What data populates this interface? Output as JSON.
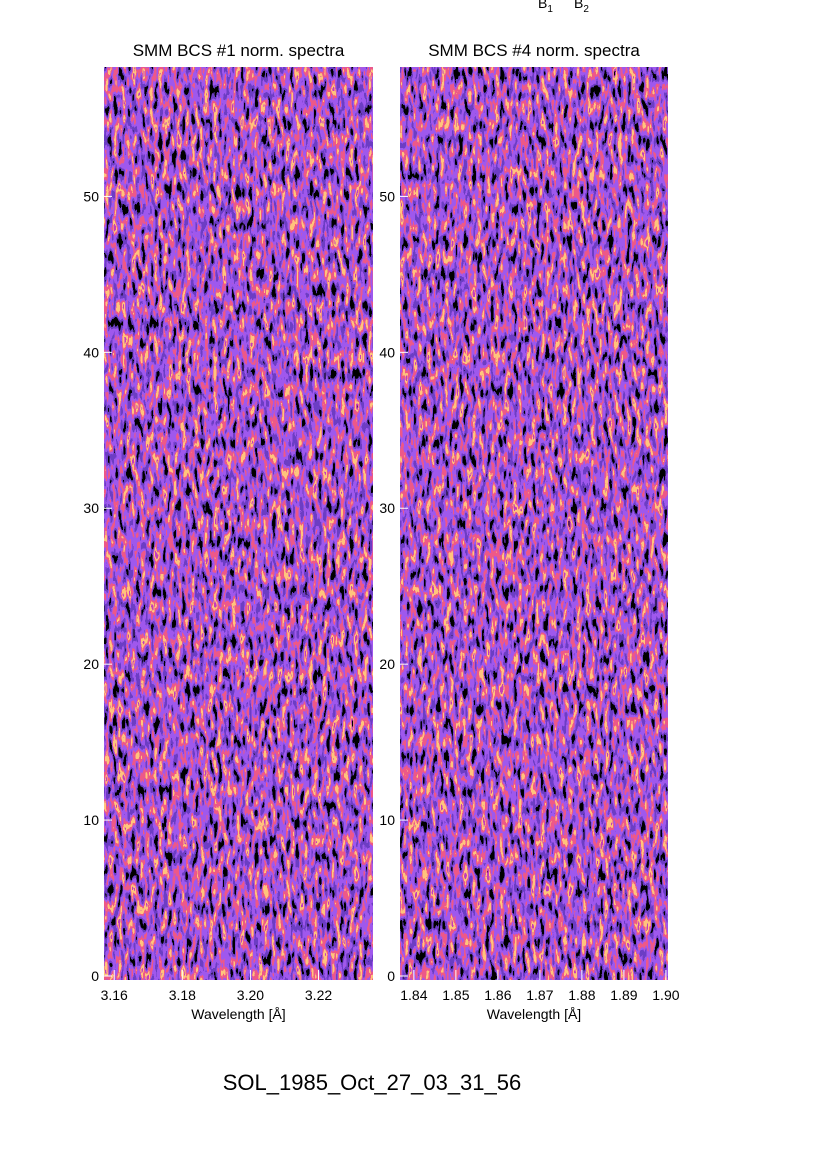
{
  "chart_data": [
    {
      "type": "heatmap",
      "title": "SMM BCS #1 norm. spectra",
      "x_label": "Wavelength [Å]",
      "xlim": [
        3.157,
        3.236
      ],
      "xticks": [
        3.16,
        3.18,
        {
          "value": 3.2,
          "label": "3.20"
        },
        3.22
      ],
      "ylim": [
        0,
        58.3
      ],
      "yticks": [
        0,
        10,
        20,
        30,
        40,
        50
      ]
    },
    {
      "type": "heatmap",
      "title": "SMM BCS #4 norm. spectra",
      "x_label": "Wavelength [Å]",
      "xlim": [
        1.8367,
        1.9005
      ],
      "xticks": [
        1.84,
        1.85,
        1.86,
        1.87,
        1.88,
        1.89,
        {
          "value": 1.9,
          "label": "1.90"
        }
      ],
      "ylim": [
        0,
        58.3
      ],
      "yticks": [
        0,
        10,
        20,
        30,
        40,
        50
      ]
    }
  ],
  "annotations": [
    {
      "base": "B",
      "sub": "1"
    },
    {
      "base": "B",
      "sub": "2"
    }
  ],
  "figure_title": "SOL_1985_Oct_27_03_31_56"
}
